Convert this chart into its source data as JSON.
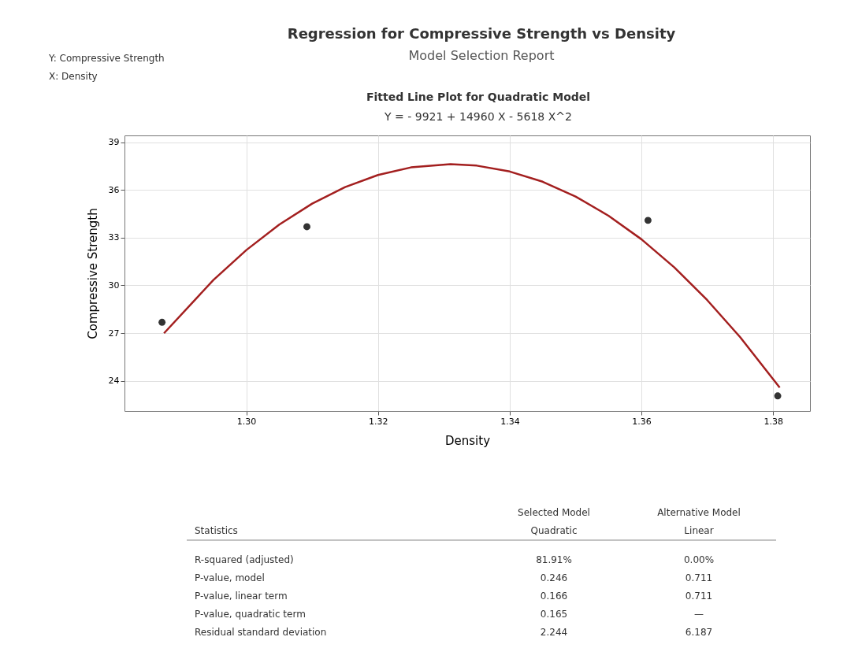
{
  "chart_data": {
    "type": "scatter",
    "title": "Regression for Compressive Strength vs Density",
    "subtitle": "Model Selection Report",
    "xlabel": "Density",
    "ylabel": "Compressive Strength",
    "annotations": [
      "Y: Compressive Strength",
      "X: Density",
      "Fitted Line Plot for Quadratic Model",
      "Y = - 9921 + 14960 X - 5618 X^2",
      "Statistics",
      "Selected Model",
      "Quadratic",
      "Alternative Model",
      "Linear",
      "R-squared (adjusted)",
      "81.91%",
      "0.00%",
      "P-value, model",
      "0.246",
      "0.711",
      "P-value, linear term",
      "0.166",
      "0.711",
      "P-value, quadratic term",
      "0.165",
      "—",
      "Residual standard deviation",
      "2.244",
      "6.187"
    ],
    "series": [
      {
        "color": "#333333",
        "marker": "circle",
        "x": [
          1.2872,
          1.3092,
          1.361,
          1.3807
        ],
        "values": [
          27.68,
          33.69,
          34.09,
          23.05
        ]
      },
      {
        "type": "line",
        "color": "#a31f1f",
        "line_style": "solid",
        "x": [
          1.2875,
          1.295,
          1.3,
          1.305,
          1.31,
          1.315,
          1.32,
          1.325,
          1.331,
          1.335,
          1.34,
          1.345,
          1.35,
          1.355,
          1.36,
          1.365,
          1.37,
          1.375,
          1.381
        ],
        "values": [
          26.99,
          30.34,
          32.22,
          33.82,
          35.14,
          36.18,
          36.94,
          37.42,
          37.62,
          37.53,
          37.16,
          36.52,
          35.59,
          34.38,
          32.9,
          31.13,
          29.07,
          26.74,
          23.57
        ]
      }
    ],
    "xlim": [
      1.2815,
      1.3856
    ],
    "xticks": [
      {
        "value": 1.3,
        "label": "1.30"
      },
      {
        "value": 1.32,
        "label": "1.32"
      },
      {
        "value": 1.34,
        "label": "1.34"
      },
      {
        "value": 1.36,
        "label": "1.36"
      },
      {
        "value": 1.38,
        "label": "1.38"
      }
    ],
    "ylim": [
      22.1,
      39.43
    ],
    "yticks": [
      24,
      27,
      30,
      33,
      36,
      39
    ],
    "grid": true
  }
}
